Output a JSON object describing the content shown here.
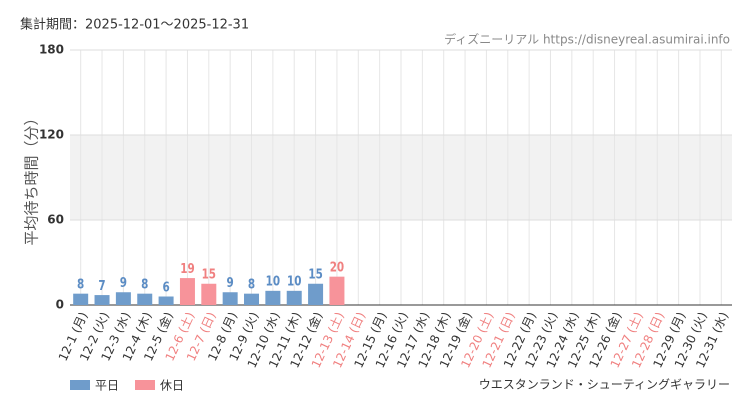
{
  "chart_data": {
    "type": "bar",
    "header": "集計期間：2025-12-01～2025-12-31",
    "source": "ディズニーリアル https://disneyreal.asumirai.info",
    "subtitle": "ウエスタンランド・シューティングギャラリー",
    "ylabel": "平均待ち時間（分）",
    "categories": [
      "12-1 (月)",
      "12-2 (火)",
      "12-3 (水)",
      "12-4 (木)",
      "12-5 (金)",
      "12-6 (土)",
      "12-7 (日)",
      "12-8 (月)",
      "12-9 (火)",
      "12-10 (水)",
      "12-11 (木)",
      "12-12 (金)",
      "12-13 (土)",
      "12-14 (日)",
      "12-15 (月)",
      "12-16 (火)",
      "12-17 (水)",
      "12-18 (木)",
      "12-19 (金)",
      "12-20 (土)",
      "12-21 (日)",
      "12-22 (月)",
      "12-23 (火)",
      "12-24 (水)",
      "12-25 (木)",
      "12-26 (金)",
      "12-27 (土)",
      "12-28 (日)",
      "12-29 (月)",
      "12-30 (火)",
      "12-31 (水)"
    ],
    "category_colors": [
      "#333",
      "#333",
      "#333",
      "#333",
      "#333",
      "#f08080",
      "#f08080",
      "#333",
      "#333",
      "#333",
      "#333",
      "#333",
      "#f08080",
      "#f08080",
      "#333",
      "#333",
      "#333",
      "#333",
      "#333",
      "#f08080",
      "#f08080",
      "#333",
      "#333",
      "#333",
      "#333",
      "#333",
      "#f08080",
      "#f08080",
      "#333",
      "#333",
      "#333"
    ],
    "series": [
      {
        "name": "平日",
        "color": "#6f9ccb",
        "label_color": "#5b8cc4",
        "values": [
          8,
          7,
          9,
          8,
          6,
          null,
          null,
          9,
          8,
          10,
          10,
          15,
          null,
          null,
          null,
          null,
          null,
          null,
          null,
          null,
          null,
          null,
          null,
          null,
          null,
          null,
          null,
          null,
          null,
          null,
          null
        ]
      },
      {
        "name": "休日",
        "color": "#f7939a",
        "label_color": "#f08080",
        "values": [
          null,
          null,
          null,
          null,
          null,
          19,
          15,
          null,
          null,
          null,
          null,
          null,
          20,
          null,
          null,
          null,
          null,
          null,
          null,
          null,
          null,
          null,
          null,
          null,
          null,
          null,
          null,
          null,
          null,
          null,
          null
        ]
      }
    ],
    "ylim": [
      0,
      180
    ],
    "yticks": [
      0,
      60,
      120,
      180
    ],
    "grid": true,
    "band_fill": "#f2f2f2",
    "legend": "bottom-left"
  }
}
